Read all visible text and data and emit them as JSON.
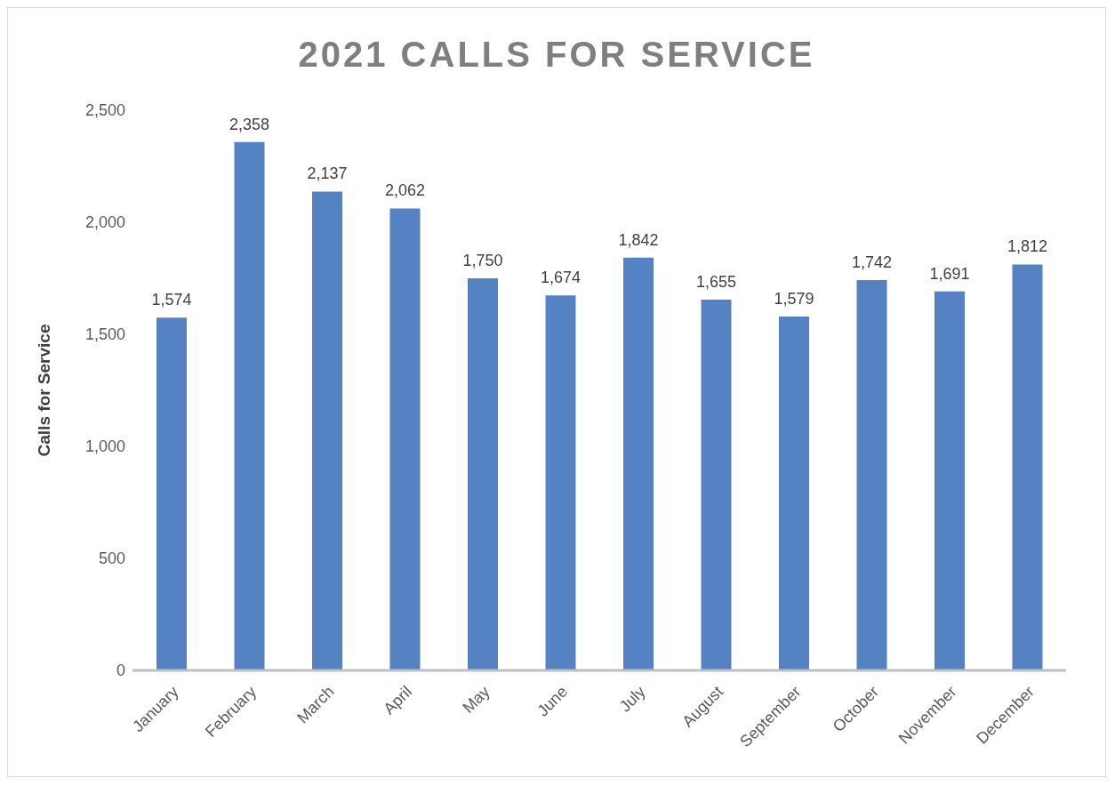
{
  "chart_data": {
    "type": "bar",
    "title": "2021 CALLS FOR SERVICE",
    "ylabel": "Calls for Service",
    "categories": [
      "January",
      "February",
      "March",
      "April",
      "May",
      "June",
      "July",
      "August",
      "September",
      "October",
      "November",
      "December"
    ],
    "values": [
      1574,
      2358,
      2137,
      2062,
      1750,
      1674,
      1842,
      1655,
      1579,
      1742,
      1691,
      1812
    ],
    "value_labels": [
      "1,574",
      "2,358",
      "2,137",
      "2,062",
      "1,750",
      "1,674",
      "1,842",
      "1,655",
      "1,579",
      "1,742",
      "1,691",
      "1,812"
    ],
    "color": "#5582c2",
    "ylim": [
      0,
      2500
    ],
    "yticks": [
      0,
      500,
      {
        "value": 1000,
        "label": "1,000"
      },
      {
        "value": 1500,
        "label": "1,500"
      },
      {
        "value": 2000,
        "label": "2,000"
      },
      {
        "value": 2500,
        "label": "2,500"
      }
    ],
    "grid": false,
    "legend": false
  }
}
